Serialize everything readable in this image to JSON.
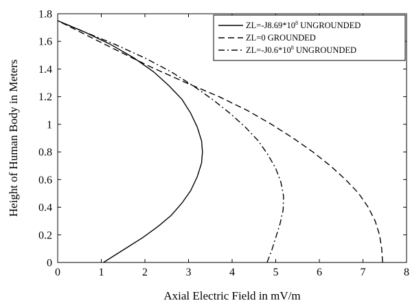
{
  "chart_data": {
    "type": "line",
    "title": "",
    "xlabel": "Axial Electric Field in mV/m",
    "ylabel": "Height of Human Body in Meters",
    "xlim": [
      0,
      8
    ],
    "ylim": [
      0,
      1.8
    ],
    "x_ticks": [
      "0",
      "1",
      "2",
      "3",
      "4",
      "5",
      "6",
      "7",
      "8"
    ],
    "y_ticks": [
      "0",
      "0.2",
      "0.4",
      "0.6",
      "0.8",
      "1",
      "1.2",
      "1.4",
      "1.6",
      "1.8"
    ],
    "x_tick_values": [
      0,
      1,
      2,
      3,
      4,
      5,
      6,
      7,
      8
    ],
    "y_tick_values": [
      0,
      0.2,
      0.4,
      0.6,
      0.8,
      1.0,
      1.2,
      1.4,
      1.6,
      1.8
    ],
    "grid": false,
    "legend_position": "top-right",
    "series": [
      {
        "name": "ZL=-J8.69*10^8 UNGROUNDED",
        "legend_main": "ZL=-J8.69*10",
        "legend_sup": "8",
        "legend_tail": " UNGROUNDED",
        "line_style": "solid",
        "x": [
          1.05,
          1.3,
          1.6,
          1.95,
          2.3,
          2.6,
          2.85,
          3.05,
          3.2,
          3.3,
          3.32,
          3.3,
          3.2,
          3.05,
          2.85,
          2.55,
          2.2,
          1.75,
          1.2,
          0.6,
          0.0
        ],
        "y": [
          0.0,
          0.05,
          0.11,
          0.18,
          0.26,
          0.34,
          0.43,
          0.52,
          0.62,
          0.72,
          0.8,
          0.88,
          0.98,
          1.08,
          1.18,
          1.28,
          1.38,
          1.48,
          1.58,
          1.67,
          1.75
        ]
      },
      {
        "name": "ZL=0 GROUNDED",
        "legend_main": "ZL=0 GROUNDED",
        "legend_sup": "",
        "legend_tail": "",
        "line_style": "dashed",
        "x": [
          7.45,
          7.43,
          7.38,
          7.28,
          7.12,
          6.9,
          6.6,
          6.25,
          5.85,
          5.4,
          4.9,
          4.35,
          3.7,
          2.95,
          2.1,
          1.2,
          0.0
        ],
        "y": [
          0.0,
          0.1,
          0.2,
          0.3,
          0.4,
          0.5,
          0.6,
          0.7,
          0.8,
          0.9,
          1.0,
          1.1,
          1.2,
          1.3,
          1.42,
          1.56,
          1.75
        ]
      },
      {
        "name": "ZL=-J0.6*10^8 UNGROUNDED",
        "legend_main": "ZL=-J0.6*10",
        "legend_sup": "8",
        "legend_tail": " UNGROUNDED",
        "line_style": "dashdot",
        "x": [
          4.8,
          4.9,
          5.0,
          5.1,
          5.17,
          5.18,
          5.12,
          5.0,
          4.82,
          4.6,
          4.3,
          3.95,
          3.55,
          3.1,
          2.6,
          2.0,
          1.3,
          0.6,
          0.0
        ],
        "y": [
          0.0,
          0.08,
          0.18,
          0.28,
          0.38,
          0.48,
          0.58,
          0.68,
          0.78,
          0.88,
          0.98,
          1.08,
          1.18,
          1.28,
          1.38,
          1.48,
          1.58,
          1.67,
          1.75
        ]
      }
    ]
  }
}
